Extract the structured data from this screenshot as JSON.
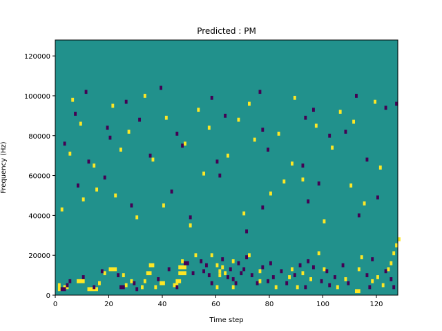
{
  "chart_data": {
    "type": "heatmap",
    "title": "Predicted : PM",
    "xlabel": "Time step",
    "ylabel": "Frequency (Hz)",
    "xlim": [
      0,
      128
    ],
    "ylim": [
      0,
      128000
    ],
    "x_ticks": [
      0,
      20,
      40,
      60,
      80,
      100,
      120
    ],
    "y_ticks": [
      0,
      20000,
      40000,
      60000,
      80000,
      100000,
      120000
    ],
    "x_tick_labels": [
      "0",
      "20",
      "40",
      "60",
      "80",
      "100",
      "120"
    ],
    "y_tick_labels": [
      "0",
      "20000",
      "40000",
      "60000",
      "80000",
      "100000",
      "120000"
    ],
    "grid": false,
    "legend": "none",
    "colors": {
      "background": "#21918c",
      "high": "#fde725",
      "low": "#440154"
    },
    "cells_high": [
      [
        1,
        2,
        1,
        4
      ],
      [
        3,
        3,
        2,
        2
      ],
      [
        8,
        6,
        3,
        2
      ],
      [
        12,
        2,
        4,
        2
      ],
      [
        16,
        5,
        1,
        2
      ],
      [
        18,
        10,
        1,
        2
      ],
      [
        20,
        12,
        3,
        2
      ],
      [
        25,
        9,
        1,
        2
      ],
      [
        26,
        4,
        1,
        2
      ],
      [
        28,
        6,
        1,
        2
      ],
      [
        32,
        3,
        1,
        2
      ],
      [
        33,
        6,
        1,
        2
      ],
      [
        34,
        10,
        2,
        2
      ],
      [
        35,
        14,
        2,
        2
      ],
      [
        37,
        3,
        1,
        2
      ],
      [
        39,
        5,
        2,
        2
      ],
      [
        44,
        4,
        2,
        2
      ],
      [
        45,
        6,
        2,
        2
      ],
      [
        46,
        10,
        3,
        2
      ],
      [
        46,
        13,
        3,
        2
      ],
      [
        47,
        16,
        1,
        2
      ],
      [
        52,
        19,
        1,
        2
      ],
      [
        58,
        19,
        1,
        2
      ],
      [
        60,
        3,
        1,
        2
      ],
      [
        60,
        14,
        1,
        2
      ],
      [
        61,
        9,
        1,
        2
      ],
      [
        61,
        11,
        1,
        2
      ],
      [
        62,
        13,
        1,
        2
      ],
      [
        63,
        10,
        1,
        2
      ],
      [
        66,
        3,
        1,
        2
      ],
      [
        66,
        16,
        1,
        2
      ],
      [
        72,
        19,
        1,
        2
      ],
      [
        76,
        11,
        1,
        2
      ],
      [
        76,
        6,
        1,
        2
      ],
      [
        82,
        3,
        1,
        2
      ],
      [
        87,
        8,
        1,
        2
      ],
      [
        88,
        12,
        1,
        2
      ],
      [
        90,
        3,
        1,
        2
      ],
      [
        92,
        10,
        1,
        2
      ],
      [
        95,
        7,
        1,
        2
      ],
      [
        98,
        20,
        1,
        2
      ],
      [
        100,
        12,
        1,
        2
      ],
      [
        105,
        3,
        1,
        2
      ],
      [
        108,
        7,
        1,
        2
      ],
      [
        112,
        1,
        2,
        2
      ],
      [
        113,
        12,
        1,
        2
      ],
      [
        114,
        18,
        1,
        2
      ],
      [
        118,
        6,
        1,
        2
      ],
      [
        120,
        8,
        1,
        2
      ],
      [
        122,
        4,
        1,
        2
      ],
      [
        124,
        12,
        1,
        2
      ],
      [
        125,
        15,
        1,
        2
      ],
      [
        126,
        20,
        1,
        2
      ],
      [
        127,
        24,
        1,
        2
      ],
      [
        128,
        27,
        1,
        2
      ],
      [
        50,
        34,
        1,
        2
      ],
      [
        85,
        56,
        1,
        2
      ],
      [
        92,
        57,
        1,
        2
      ],
      [
        110,
        54,
        1,
        2
      ],
      [
        2,
        42,
        1,
        2
      ],
      [
        10,
        47,
        1,
        2
      ],
      [
        15,
        52,
        1,
        2
      ],
      [
        22,
        49,
        1,
        2
      ],
      [
        30,
        38,
        1,
        2
      ],
      [
        40,
        44,
        1,
        2
      ],
      [
        55,
        60,
        1,
        2
      ],
      [
        70,
        40,
        1,
        2
      ],
      [
        80,
        50,
        1,
        2
      ],
      [
        100,
        36,
        1,
        2
      ],
      [
        115,
        45,
        1,
        2
      ],
      [
        5,
        70,
        1,
        2
      ],
      [
        14,
        64,
        1,
        2
      ],
      [
        24,
        72,
        1,
        2
      ],
      [
        36,
        67,
        1,
        2
      ],
      [
        48,
        75,
        1,
        2
      ],
      [
        64,
        69,
        1,
        2
      ],
      [
        74,
        77,
        1,
        2
      ],
      [
        88,
        65,
        1,
        2
      ],
      [
        103,
        73,
        1,
        2
      ],
      [
        121,
        63,
        1,
        2
      ],
      [
        9,
        85,
        1,
        2
      ],
      [
        27,
        81,
        1,
        2
      ],
      [
        41,
        88,
        1,
        2
      ],
      [
        57,
        83,
        1,
        2
      ],
      [
        68,
        87,
        1,
        2
      ],
      [
        83,
        80,
        1,
        2
      ],
      [
        97,
        84,
        1,
        2
      ],
      [
        111,
        86,
        1,
        2
      ],
      [
        6,
        97,
        1,
        2
      ],
      [
        21,
        94,
        1,
        2
      ],
      [
        33,
        99,
        1,
        2
      ],
      [
        53,
        92,
        1,
        2
      ],
      [
        72,
        95,
        1,
        2
      ],
      [
        89,
        98,
        1,
        2
      ],
      [
        106,
        91,
        1,
        2
      ],
      [
        119,
        96,
        1,
        2
      ]
    ],
    "cells_low": [
      [
        2,
        2,
        2,
        2
      ],
      [
        4,
        4,
        1,
        2
      ],
      [
        5,
        6,
        1,
        2
      ],
      [
        10,
        8,
        1,
        2
      ],
      [
        14,
        3,
        1,
        2
      ],
      [
        17,
        11,
        1,
        2
      ],
      [
        23,
        9,
        1,
        2
      ],
      [
        24,
        3,
        2,
        2
      ],
      [
        29,
        5,
        1,
        2
      ],
      [
        30,
        2,
        1,
        2
      ],
      [
        38,
        7,
        1,
        2
      ],
      [
        42,
        12,
        1,
        2
      ],
      [
        45,
        3,
        1,
        2
      ],
      [
        48,
        15,
        2,
        2
      ],
      [
        51,
        10,
        1,
        2
      ],
      [
        54,
        16,
        1,
        2
      ],
      [
        55,
        11,
        1,
        2
      ],
      [
        56,
        14,
        1,
        2
      ],
      [
        57,
        9,
        1,
        2
      ],
      [
        58,
        5,
        1,
        2
      ],
      [
        62,
        17,
        1,
        2
      ],
      [
        64,
        8,
        1,
        2
      ],
      [
        65,
        12,
        1,
        2
      ],
      [
        66,
        7,
        1,
        2
      ],
      [
        67,
        5,
        1,
        2
      ],
      [
        68,
        15,
        1,
        2
      ],
      [
        69,
        10,
        1,
        2
      ],
      [
        70,
        12,
        1,
        2
      ],
      [
        71,
        18,
        1,
        2
      ],
      [
        73,
        9,
        1,
        2
      ],
      [
        75,
        5,
        1,
        2
      ],
      [
        77,
        13,
        1,
        2
      ],
      [
        79,
        6,
        1,
        2
      ],
      [
        80,
        15,
        1,
        2
      ],
      [
        81,
        8,
        1,
        2
      ],
      [
        84,
        11,
        1,
        2
      ],
      [
        86,
        5,
        1,
        2
      ],
      [
        89,
        9,
        1,
        2
      ],
      [
        91,
        14,
        1,
        2
      ],
      [
        93,
        3,
        1,
        2
      ],
      [
        94,
        16,
        1,
        2
      ],
      [
        96,
        13,
        1,
        2
      ],
      [
        99,
        6,
        1,
        2
      ],
      [
        101,
        11,
        1,
        2
      ],
      [
        102,
        4,
        1,
        2
      ],
      [
        104,
        8,
        1,
        2
      ],
      [
        107,
        14,
        1,
        2
      ],
      [
        109,
        5,
        1,
        2
      ],
      [
        116,
        9,
        1,
        2
      ],
      [
        117,
        3,
        1,
        2
      ],
      [
        118,
        17,
        1,
        2
      ],
      [
        123,
        11,
        1,
        2
      ],
      [
        125,
        7,
        1,
        2
      ],
      [
        126,
        3,
        1,
        2
      ],
      [
        50,
        38,
        1,
        2
      ],
      [
        71,
        31,
        1,
        2
      ],
      [
        94,
        46,
        1,
        2
      ],
      [
        113,
        39,
        1,
        2
      ],
      [
        8,
        54,
        1,
        2
      ],
      [
        18,
        58,
        1,
        2
      ],
      [
        28,
        44,
        1,
        2
      ],
      [
        43,
        51,
        1,
        2
      ],
      [
        61,
        59,
        1,
        2
      ],
      [
        77,
        43,
        1,
        2
      ],
      [
        98,
        55,
        1,
        2
      ],
      [
        120,
        48,
        1,
        2
      ],
      [
        3,
        75,
        1,
        2
      ],
      [
        12,
        66,
        1,
        2
      ],
      [
        20,
        78,
        1,
        2
      ],
      [
        35,
        69,
        1,
        2
      ],
      [
        47,
        74,
        1,
        2
      ],
      [
        60,
        66,
        1,
        2
      ],
      [
        79,
        72,
        1,
        2
      ],
      [
        92,
        64,
        1,
        2
      ],
      [
        102,
        79,
        1,
        2
      ],
      [
        116,
        67,
        1,
        2
      ],
      [
        7,
        90,
        1,
        2
      ],
      [
        19,
        83,
        1,
        2
      ],
      [
        31,
        87,
        1,
        2
      ],
      [
        45,
        80,
        1,
        2
      ],
      [
        63,
        89,
        1,
        2
      ],
      [
        77,
        82,
        1,
        2
      ],
      [
        93,
        88,
        1,
        2
      ],
      [
        108,
        81,
        1,
        2
      ],
      [
        123,
        93,
        1,
        2
      ],
      [
        11,
        101,
        1,
        2
      ],
      [
        26,
        96,
        1,
        2
      ],
      [
        39,
        103,
        1,
        2
      ],
      [
        58,
        98,
        1,
        2
      ],
      [
        76,
        101,
        1,
        2
      ],
      [
        96,
        92,
        1,
        2
      ],
      [
        112,
        99,
        1,
        2
      ],
      [
        127,
        95,
        1,
        2
      ]
    ]
  }
}
